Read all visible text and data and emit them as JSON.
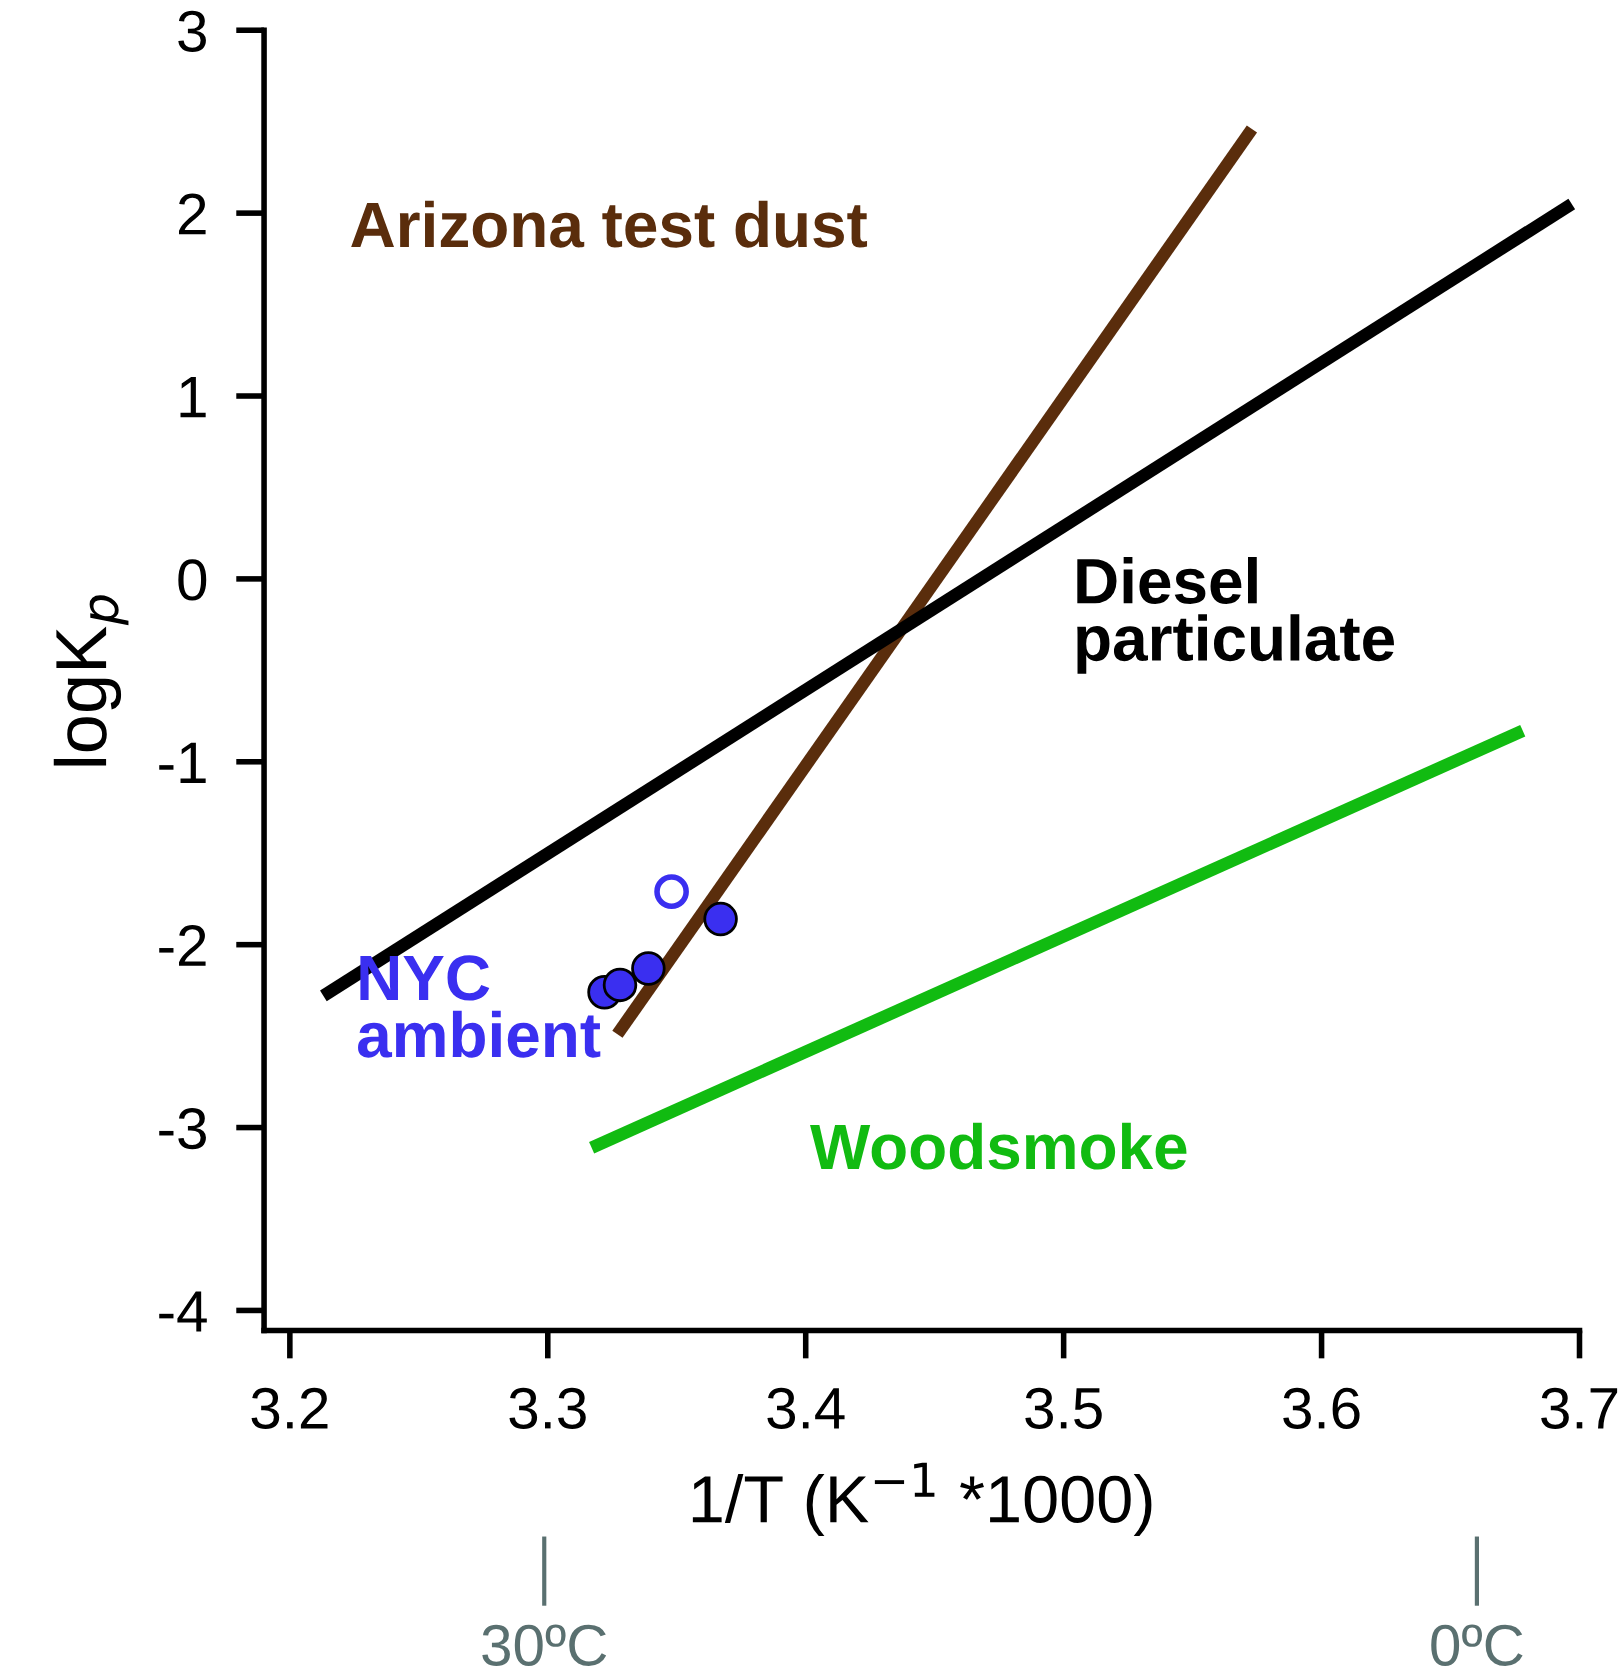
{
  "chart_data": {
    "type": "line",
    "xlabel": "1/T (K$^{−1}$ *1000)",
    "ylabel": "logK$_{p}$",
    "xlim": [
      3.19,
      3.7
    ],
    "ylim": [
      -4.11,
      3
    ],
    "xticks": [
      3.2,
      3.3,
      3.4,
      3.5,
      3.6,
      3.7
    ],
    "yticks": [
      -4,
      -3,
      -2,
      -1,
      0,
      1,
      2,
      3
    ],
    "grid": false,
    "legend": false,
    "series": [
      {
        "name": "Arizona test dust",
        "color": "#5a2d0c",
        "x": [
          3.327,
          3.573
        ],
        "values": [
          -2.49,
          2.46
        ]
      },
      {
        "name": "Diesel\nparticulate",
        "color": "#000000",
        "x": [
          3.213,
          3.697
        ],
        "values": [
          -2.28,
          2.05
        ]
      },
      {
        "name": "Woodsmoke",
        "color": "#11bb11",
        "x": [
          3.317,
          3.678
        ],
        "values": [
          -3.11,
          -0.83
        ]
      },
      {
        "name": "NYC\nambient",
        "type": "scatter",
        "marker": "circle",
        "color": "#3a2ff0",
        "x": [
          3.322,
          3.328,
          3.339,
          3.367
        ],
        "values": [
          -2.26,
          -2.22,
          -2.13,
          -1.86
        ]
      },
      {
        "type": "scatter",
        "marker": "circle",
        "color": "#3a2ff0",
        "x": [
          3.348
        ],
        "values": [
          -1.71
        ]
      }
    ],
    "annotations": [
      "30ºC",
      "0ºC"
    ]
  }
}
